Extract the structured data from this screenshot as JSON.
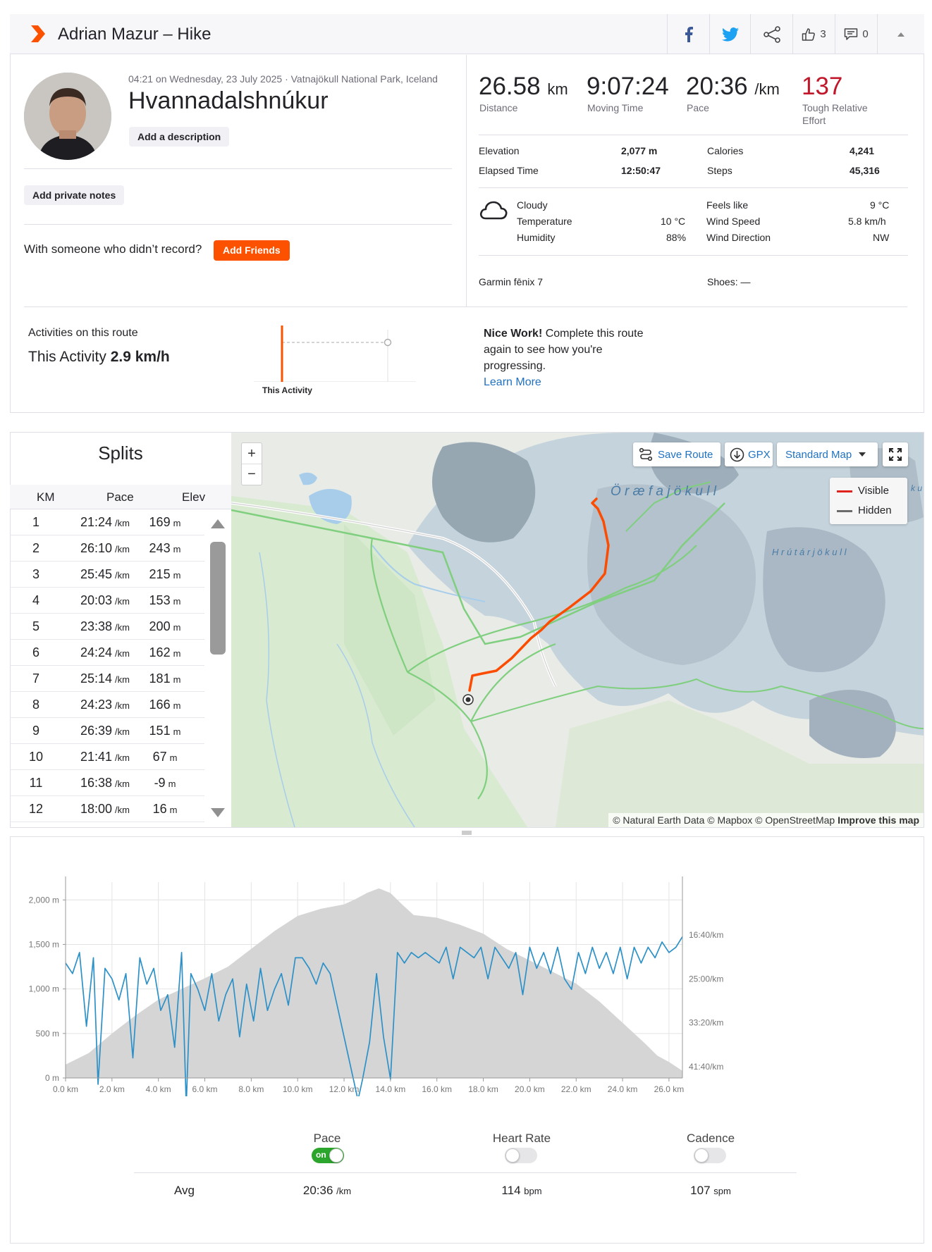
{
  "header": {
    "title": "Adrian Mazur – Hike",
    "kudos_count": "3",
    "comments_count": "0"
  },
  "activity": {
    "datetime_location": "04:21 on Wednesday, 23 July 2025 · Vatnajökull National Park, Iceland",
    "name": "Hvannadalshnúkur",
    "add_description": "Add a description",
    "add_private_notes": "Add private notes",
    "friends_prompt": "With someone who didn’t record?",
    "add_friends": "Add Friends"
  },
  "stats": {
    "distance": {
      "value": "26.58",
      "unit": "km",
      "label": "Distance"
    },
    "moving_time": {
      "value": "9:07:24",
      "label": "Moving Time"
    },
    "pace": {
      "value": "20:36",
      "unit": "/km",
      "label": "Pace"
    },
    "effort": {
      "value": "137",
      "label1": "Tough Relative",
      "label2": "Effort"
    },
    "elevation": {
      "label": "Elevation",
      "value": "2,077 m"
    },
    "elapsed": {
      "label": "Elapsed Time",
      "value": "12:50:47"
    },
    "calories": {
      "label": "Calories",
      "value": "4,241"
    },
    "steps": {
      "label": "Steps",
      "value": "45,316"
    }
  },
  "weather": {
    "condition": "Cloudy",
    "temperature_label": "Temperature",
    "temperature": "10 °C",
    "humidity_label": "Humidity",
    "humidity": "88%",
    "feels_like_label": "Feels like",
    "feels_like": "9 °C",
    "wind_speed_label": "Wind Speed",
    "wind_speed": "5.8 km/h",
    "wind_dir_label": "Wind Direction",
    "wind_dir": "NW"
  },
  "gear": {
    "device": "Garmin fēnix 7",
    "shoes": "Shoes: —"
  },
  "route": {
    "title": "Activities on this route",
    "this_activity": "This Activity",
    "this_activity_speed": "2.9 km/h",
    "chart_label": "This Activity",
    "nice_work": "Nice Work!",
    "nice_work_text1": " Complete this route",
    "nice_work_text2": "again to see how you're",
    "nice_work_text3": "progressing.",
    "learn_more": "Learn More"
  },
  "splits": {
    "title": "Splits",
    "headers": [
      "KM",
      "Pace",
      "Elev"
    ],
    "pace_unit": "/km",
    "elev_unit": "m",
    "rows": [
      {
        "km": "1",
        "pace": "21:24",
        "elev": "169"
      },
      {
        "km": "2",
        "pace": "26:10",
        "elev": "243"
      },
      {
        "km": "3",
        "pace": "25:45",
        "elev": "215"
      },
      {
        "km": "4",
        "pace": "20:03",
        "elev": "153"
      },
      {
        "km": "5",
        "pace": "23:38",
        "elev": "200"
      },
      {
        "km": "6",
        "pace": "24:24",
        "elev": "162"
      },
      {
        "km": "7",
        "pace": "25:14",
        "elev": "181"
      },
      {
        "km": "8",
        "pace": "24:23",
        "elev": "166"
      },
      {
        "km": "9",
        "pace": "26:39",
        "elev": "151"
      },
      {
        "km": "10",
        "pace": "21:41",
        "elev": "67"
      },
      {
        "km": "11",
        "pace": "16:38",
        "elev": "-9"
      },
      {
        "km": "12",
        "pace": "18:00",
        "elev": "16"
      }
    ]
  },
  "map": {
    "zoom_in": "+",
    "zoom_out": "−",
    "save_route": "Save Route",
    "gpx": "GPX",
    "map_type": "Standard Map",
    "legend_visible": "Visible",
    "legend_hidden": "Hidden",
    "label_glacier": "Ö r æ f a j ö k u l l",
    "label_hrutar": "H r ú t á r j ö k u l l",
    "label_edge": "k u",
    "attribution": "© Natural Earth Data © Mapbox © OpenStreetMap",
    "improve": "Improve this map",
    "route_color": "#fc4c02"
  },
  "chart_data": {
    "type": "area",
    "x_unit": "km",
    "xlim": [
      0,
      26.58
    ],
    "x_ticks": [
      "0.0 km",
      "2.0 km",
      "4.0 km",
      "6.0 km",
      "8.0 km",
      "10.0 km",
      "12.0 km",
      "14.0 km",
      "16.0 km",
      "18.0 km",
      "20.0 km",
      "22.0 km",
      "24.0 km",
      "26.0 km"
    ],
    "y_ticks_left": [
      "0 m",
      "500 m",
      "1,000 m",
      "1,500 m",
      "2,000 m"
    ],
    "y_ticks_right": [
      "16:40/km",
      "25:00/km",
      "33:20/km",
      "41:40/km"
    ],
    "ylim_left": [
      0,
      2200
    ],
    "series": [
      {
        "name": "Elevation",
        "color": "#d5d5d5",
        "x": [
          0,
          1,
          2,
          3,
          4,
          5,
          6,
          7,
          8,
          9,
          10,
          11,
          12,
          12.5,
          13,
          13.5,
          14,
          14.5,
          15,
          16,
          17,
          18,
          19,
          20,
          21,
          22,
          23,
          24,
          25,
          25.5,
          26,
          26.58
        ],
        "y": [
          150,
          280,
          500,
          700,
          880,
          1000,
          1120,
          1250,
          1450,
          1650,
          1820,
          1900,
          1950,
          2010,
          2080,
          2130,
          2077,
          1950,
          1830,
          1800,
          1720,
          1620,
          1450,
          1320,
          1190,
          1060,
          860,
          620,
          380,
          250,
          180,
          80
        ]
      },
      {
        "name": "Pace",
        "color": "#2d91c8",
        "x": [
          0,
          0.3,
          0.6,
          0.9,
          1.2,
          1.4,
          1.7,
          2.0,
          2.3,
          2.6,
          2.9,
          3.2,
          3.5,
          3.8,
          4.1,
          4.4,
          4.7,
          5.0,
          5.2,
          5.4,
          5.7,
          6.0,
          6.3,
          6.6,
          6.9,
          7.2,
          7.5,
          7.8,
          8.1,
          8.4,
          8.7,
          9.0,
          9.3,
          9.6,
          9.9,
          10.2,
          10.5,
          10.8,
          11.1,
          11.4,
          11.7,
          12.0,
          12.3,
          12.6,
          12.8,
          13.1,
          13.4,
          13.7,
          14.0,
          14.3,
          14.6,
          14.9,
          15.2,
          15.5,
          15.8,
          16.1,
          16.4,
          16.7,
          17.0,
          17.3,
          17.6,
          17.9,
          18.2,
          18.5,
          18.8,
          19.1,
          19.4,
          19.7,
          20.0,
          20.3,
          20.6,
          20.9,
          21.2,
          21.5,
          21.8,
          22.1,
          22.4,
          22.7,
          23.0,
          23.3,
          23.6,
          23.9,
          24.2,
          24.5,
          24.8,
          25.1,
          25.4,
          25.7,
          26.0,
          26.3,
          26.58
        ],
        "y": [
          22,
          24,
          20,
          34,
          21,
          45,
          23,
          25,
          29,
          24,
          40,
          21,
          26,
          23,
          31,
          28,
          38,
          20,
          49,
          24,
          27,
          31,
          24,
          33,
          28,
          25,
          36,
          26,
          33,
          23,
          31,
          27,
          24,
          30,
          21,
          21,
          23,
          26,
          22,
          24,
          30,
          36,
          42,
          48,
          44,
          37,
          24,
          36,
          44,
          20,
          22,
          20,
          21,
          20,
          21,
          22,
          19,
          25,
          19,
          20,
          21,
          19,
          25,
          19,
          21,
          23,
          20,
          28,
          19,
          23,
          20,
          24,
          19,
          25,
          27,
          20,
          24,
          19,
          23,
          20,
          24,
          19,
          25,
          19,
          22,
          19,
          21,
          18,
          20,
          19,
          17
        ]
      }
    ],
    "toggles": [
      {
        "label": "Pace",
        "state": "on"
      },
      {
        "label": "Heart Rate",
        "state": ""
      },
      {
        "label": "Cadence",
        "state": ""
      }
    ],
    "avg_label": "Avg",
    "avg_pace": "20:36",
    "avg_pace_unit": "/km",
    "avg_hr": "114",
    "avg_hr_unit": "bpm",
    "avg_cad": "107",
    "avg_cad_unit": "spm"
  },
  "colors": {
    "brand": "#fc5200",
    "effort": "#c0172a",
    "link": "#1f72c2",
    "toggle_on": "#2ba52b"
  }
}
